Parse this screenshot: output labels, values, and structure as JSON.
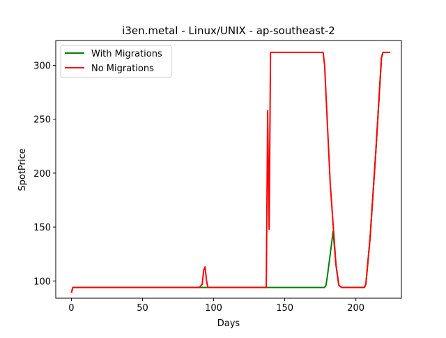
{
  "chart_data": {
    "type": "line",
    "title": "i3en.metal - Linux/UNIX - ap-southeast-2",
    "xlabel": "Days",
    "ylabel": "SpotPrice",
    "xlim": [
      -11,
      232
    ],
    "ylim": [
      84,
      323
    ],
    "xticks": [
      0,
      50,
      100,
      150,
      200
    ],
    "yticks": [
      100,
      150,
      200,
      250,
      300
    ],
    "grid": false,
    "legend_position": "top-left",
    "series": [
      {
        "name": "With Migrations",
        "color": "#008000",
        "x": [
          0,
          1,
          50,
          100,
          135,
          150,
          170,
          178,
          179,
          180,
          182,
          184,
          186,
          188,
          190,
          200,
          206,
          207,
          210,
          214,
          218,
          219,
          220,
          224
        ],
        "y": [
          89,
          94,
          94,
          94,
          94,
          94,
          94,
          94,
          96,
          105,
          125,
          146,
          115,
          96,
          94,
          94,
          94,
          97,
          140,
          220,
          307,
          312,
          312,
          312
        ]
      },
      {
        "name": "No Migrations",
        "color": "#ff0000",
        "x": [
          0,
          1,
          50,
          90,
          92,
          93,
          94,
          95,
          96,
          100,
          137,
          138,
          139,
          140,
          141,
          145,
          160,
          176,
          177,
          178,
          182,
          186,
          188,
          190,
          200,
          206,
          207,
          210,
          214,
          218,
          219,
          220,
          224
        ],
        "y": [
          89,
          94,
          94,
          94,
          97,
          110,
          113,
          100,
          94,
          94,
          94,
          258,
          148,
          312,
          312,
          312,
          312,
          312,
          312,
          300,
          190,
          115,
          96,
          94,
          94,
          94,
          97,
          140,
          220,
          307,
          312,
          312,
          312
        ]
      }
    ]
  }
}
